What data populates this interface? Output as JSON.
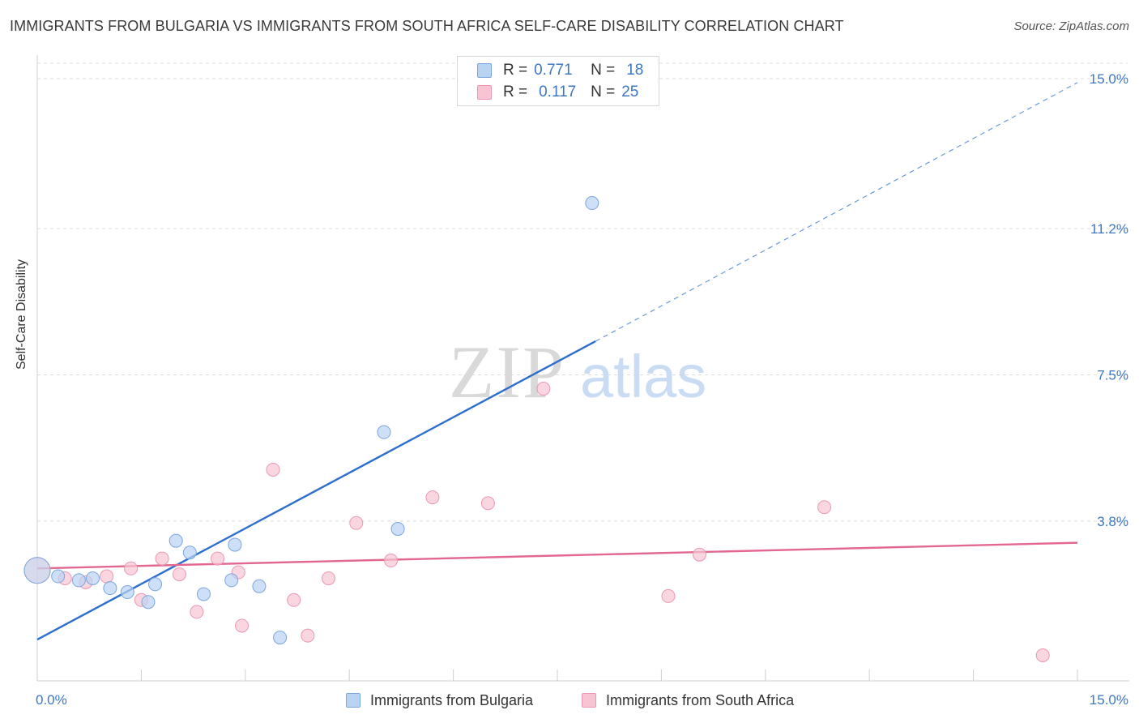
{
  "title": "IMMIGRANTS FROM BULGARIA VS IMMIGRANTS FROM SOUTH AFRICA SELF-CARE DISABILITY CORRELATION CHART",
  "source": "Source: ZipAtlas.com",
  "watermark": {
    "zip": "ZIP",
    "atlas": "atlas"
  },
  "legend": {
    "bulgaria": {
      "r_label": "R =",
      "r_value": "0.771",
      "n_label": "N =",
      "n_value": "18"
    },
    "south_africa": {
      "r_label": "R =",
      "r_value": "0.117",
      "n_label": "N =",
      "n_value": "25"
    }
  },
  "colors": {
    "bulgaria_fill": "#b9d3f3",
    "bulgaria_stroke": "#7aa6de",
    "bulgaria_line": "#2c6fce",
    "south_africa_fill": "#f8c4d3",
    "south_africa_stroke": "#eb98b2",
    "south_africa_line": "#e26890",
    "tick_label": "#3d77c6",
    "grid": "#dcdcdc"
  },
  "chart_data": {
    "type": "scatter",
    "title": "IMMIGRANTS FROM BULGARIA VS IMMIGRANTS FROM SOUTH AFRICA SELF-CARE DISABILITY CORRELATION CHART",
    "xlabel": "",
    "ylabel": "Self-Care Disability",
    "xlim": [
      0,
      15
    ],
    "ylim": [
      0,
      15.5
    ],
    "x_tick_labels": [
      "0.0%",
      "15.0%"
    ],
    "y_ticks": [
      {
        "value": 3.8,
        "label": "3.8%"
      },
      {
        "value": 7.5,
        "label": "7.5%"
      },
      {
        "value": 11.2,
        "label": "11.2%"
      },
      {
        "value": 15.0,
        "label": "15.0%"
      }
    ],
    "series": [
      {
        "name": "Immigrants from Bulgaria",
        "points": [
          {
            "x": 0.0,
            "y": 2.55,
            "big": true
          },
          {
            "x": 0.3,
            "y": 2.4
          },
          {
            "x": 0.6,
            "y": 2.3
          },
          {
            "x": 0.8,
            "y": 2.35
          },
          {
            "x": 1.05,
            "y": 2.1
          },
          {
            "x": 1.3,
            "y": 2.0
          },
          {
            "x": 1.6,
            "y": 1.75
          },
          {
            "x": 1.7,
            "y": 2.2
          },
          {
            "x": 2.0,
            "y": 3.3
          },
          {
            "x": 2.2,
            "y": 3.0
          },
          {
            "x": 2.4,
            "y": 1.95
          },
          {
            "x": 2.85,
            "y": 3.2
          },
          {
            "x": 2.8,
            "y": 2.3
          },
          {
            "x": 3.2,
            "y": 2.15
          },
          {
            "x": 3.5,
            "y": 0.85
          },
          {
            "x": 5.0,
            "y": 6.05
          },
          {
            "x": 5.2,
            "y": 3.6
          },
          {
            "x": 8.0,
            "y": 11.85
          }
        ],
        "trendline": {
          "x0": 0.0,
          "y0": 0.8,
          "x1": 8.05,
          "y1": 8.35,
          "x_dash_end": 15.0,
          "y_dash_end": 14.9
        }
      },
      {
        "name": "Immigrants from South Africa",
        "points": [
          {
            "x": 0.0,
            "y": 2.55,
            "big": true
          },
          {
            "x": 0.4,
            "y": 2.35
          },
          {
            "x": 0.7,
            "y": 2.25
          },
          {
            "x": 1.0,
            "y": 2.4
          },
          {
            "x": 1.35,
            "y": 2.6
          },
          {
            "x": 1.5,
            "y": 1.8
          },
          {
            "x": 1.8,
            "y": 2.85
          },
          {
            "x": 2.05,
            "y": 2.45
          },
          {
            "x": 2.3,
            "y": 1.5
          },
          {
            "x": 2.6,
            "y": 2.85
          },
          {
            "x": 2.95,
            "y": 1.15
          },
          {
            "x": 2.9,
            "y": 2.5
          },
          {
            "x": 3.4,
            "y": 5.1
          },
          {
            "x": 3.7,
            "y": 1.8
          },
          {
            "x": 3.9,
            "y": 0.9
          },
          {
            "x": 4.2,
            "y": 2.35
          },
          {
            "x": 4.6,
            "y": 3.75
          },
          {
            "x": 5.1,
            "y": 2.8
          },
          {
            "x": 5.7,
            "y": 4.4
          },
          {
            "x": 6.5,
            "y": 4.25
          },
          {
            "x": 7.3,
            "y": 7.15
          },
          {
            "x": 9.1,
            "y": 1.9
          },
          {
            "x": 9.55,
            "y": 2.95
          },
          {
            "x": 11.35,
            "y": 4.15
          },
          {
            "x": 14.5,
            "y": 0.4
          }
        ],
        "trendline": {
          "x0": 0.0,
          "y0": 2.6,
          "x1": 15.0,
          "y1": 3.25
        }
      }
    ]
  }
}
